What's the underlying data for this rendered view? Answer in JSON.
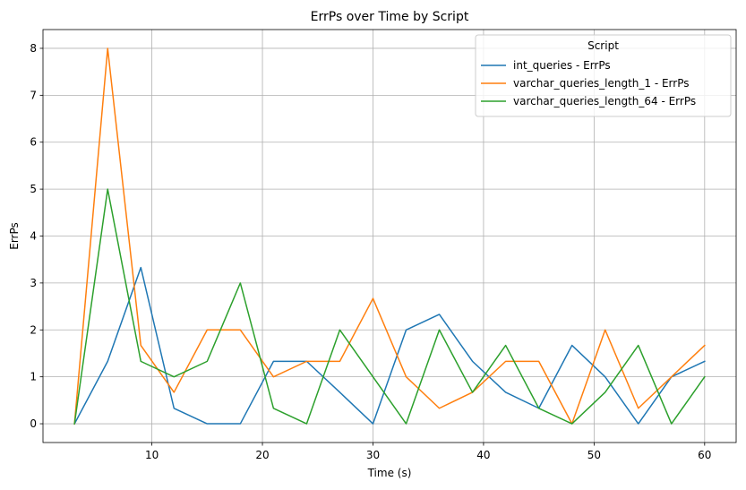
{
  "chart_data": {
    "type": "line",
    "title": "ErrPs over Time by Script",
    "xlabel": "Time (s)",
    "ylabel": "ErrPs",
    "xlim": [
      0.15,
      62.85
    ],
    "ylim": [
      -0.4,
      8.4
    ],
    "xticks": [
      10,
      20,
      30,
      40,
      50,
      60
    ],
    "yticks": [
      0,
      1,
      2,
      3,
      4,
      5,
      6,
      7,
      8
    ],
    "grid": true,
    "legend": {
      "title": "Script",
      "placement": "top-right"
    },
    "x": [
      3,
      6,
      9,
      12,
      15,
      18,
      21,
      24,
      27,
      30,
      33,
      36,
      39,
      42,
      45,
      48,
      51,
      54,
      57,
      60
    ],
    "series": [
      {
        "name": "int_queries - ErrPs",
        "color": "#1f77b4",
        "values": [
          0,
          1.33,
          3.33,
          0.33,
          0,
          0,
          1.33,
          1.33,
          0.67,
          0,
          2,
          2.33,
          1.33,
          0.67,
          0.33,
          1.67,
          1,
          0,
          1,
          1.33
        ]
      },
      {
        "name": "varchar_queries_length_1 - ErrPs",
        "color": "#ff7f0e",
        "values": [
          0,
          8,
          1.67,
          0.67,
          2,
          2,
          1,
          1.33,
          1.33,
          2.67,
          1,
          0.33,
          0.67,
          1.33,
          1.33,
          0,
          2,
          0.33,
          1,
          1.67
        ]
      },
      {
        "name": "varchar_queries_length_64 - ErrPs",
        "color": "#2ca02c",
        "values": [
          0,
          5,
          1.33,
          1,
          1.33,
          3,
          0.33,
          0,
          2,
          1,
          0,
          2,
          0.67,
          1.67,
          0.33,
          0,
          0.67,
          1.67,
          0,
          1
        ]
      }
    ]
  }
}
